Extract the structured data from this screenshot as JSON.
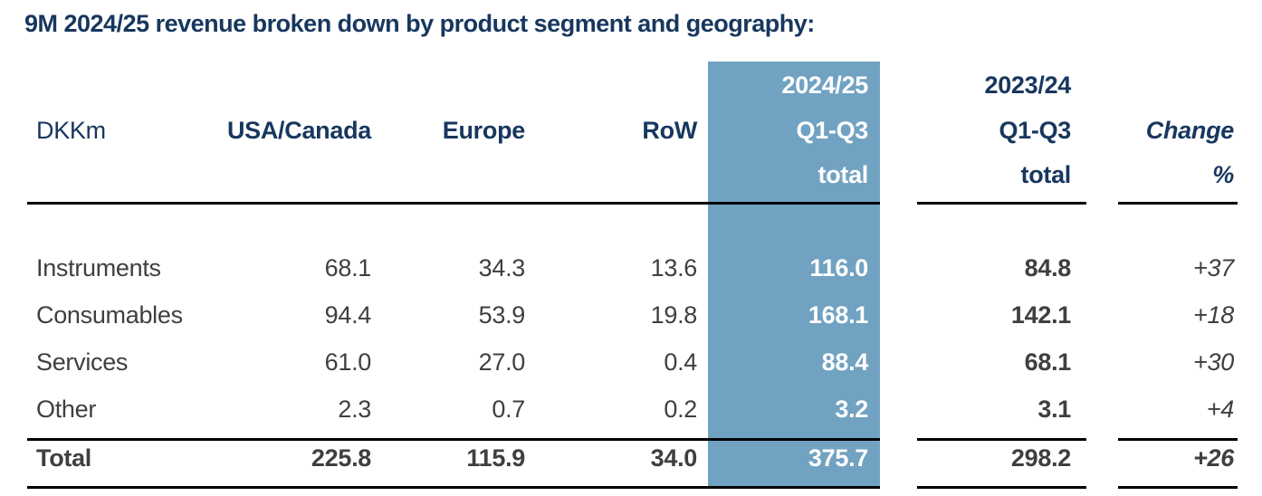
{
  "title": "9M 2024/25 revenue broken down by product segment and geography:",
  "table": {
    "unit_label": "DKKm",
    "header": {
      "usa": "USA/Canada",
      "europe": "Europe",
      "row": "RoW",
      "cur_year": "2024/25",
      "cur_period": "Q1-Q3",
      "cur_total": "total",
      "prev_year": "2023/24",
      "prev_period": "Q1-Q3",
      "prev_total": "total",
      "change": "Change",
      "change_unit": "%"
    },
    "rows": [
      {
        "label": "Instruments",
        "usa": "68.1",
        "europe": "34.3",
        "row": "13.6",
        "cur": "116.0",
        "prev": "84.8",
        "change": "+37"
      },
      {
        "label": "Consumables",
        "usa": "94.4",
        "europe": "53.9",
        "row": "19.8",
        "cur": "168.1",
        "prev": "142.1",
        "change": "+18"
      },
      {
        "label": "Services",
        "usa": "61.0",
        "europe": "27.0",
        "row": "0.4",
        "cur": "88.4",
        "prev": "68.1",
        "change": "+30"
      },
      {
        "label": "Other",
        "usa": "2.3",
        "europe": "0.7",
        "row": "0.2",
        "cur": "3.2",
        "prev": "3.1",
        "change": "+4"
      }
    ],
    "total_row": {
      "label": "Total",
      "usa": "225.8",
      "europe": "115.9",
      "row": "34.0",
      "cur": "375.7",
      "prev": "298.2",
      "change": "+26"
    }
  },
  "colors": {
    "navy": "#17375e",
    "data_gray": "#3f3f3f",
    "highlight_blue": "#71a2c1",
    "highlight_text": "#ffffff",
    "rule_black": "#000000",
    "background": "#ffffff"
  },
  "chart_data": {
    "type": "table",
    "title": "9M 2024/25 revenue broken down by product segment and geography:",
    "unit": "DKKm",
    "columns": [
      "USA/Canada",
      "Europe",
      "RoW",
      "2024/25 Q1-Q3 total",
      "2023/24 Q1-Q3 total",
      "Change %"
    ],
    "rows": [
      {
        "label": "Instruments",
        "values": [
          68.1,
          34.3,
          13.6,
          116.0,
          84.8,
          "+37"
        ]
      },
      {
        "label": "Consumables",
        "values": [
          94.4,
          53.9,
          19.8,
          168.1,
          142.1,
          "+18"
        ]
      },
      {
        "label": "Services",
        "values": [
          61.0,
          27.0,
          0.4,
          88.4,
          68.1,
          "+30"
        ]
      },
      {
        "label": "Other",
        "values": [
          2.3,
          0.7,
          0.2,
          3.2,
          3.1,
          "+4"
        ]
      },
      {
        "label": "Total",
        "values": [
          225.8,
          115.9,
          34.0,
          375.7,
          298.2,
          "+26"
        ]
      }
    ],
    "highlighted_column": "2024/25 Q1-Q3 total",
    "layout_hints": {
      "highlight_column_color": "#71a2c1",
      "numbers_right_aligned": true,
      "grid": "horizontal rules only"
    }
  }
}
